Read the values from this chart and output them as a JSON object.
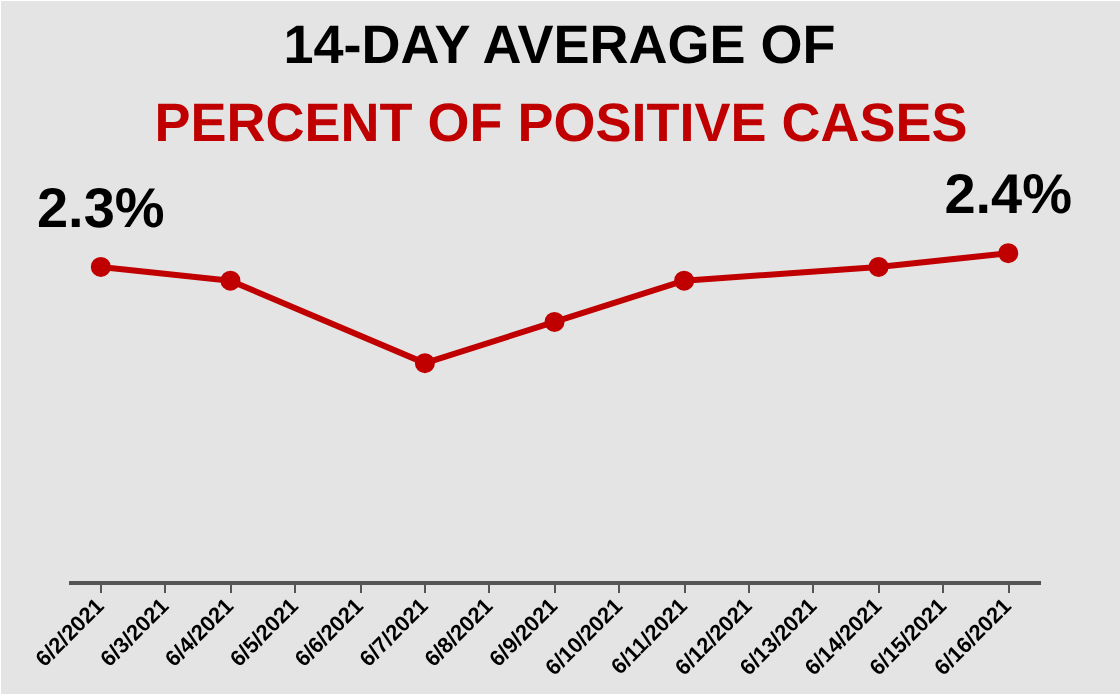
{
  "chart_data": {
    "type": "line",
    "title": "14-DAY AVERAGE OF",
    "subtitle": "PERCENT OF POSITIVE CASES",
    "categories": [
      "6/2/2021",
      "6/3/2021",
      "6/4/2021",
      "6/5/2021",
      "6/6/2021",
      "6/7/2021",
      "6/8/2021",
      "6/9/2021",
      "6/10/2021",
      "6/11/2021",
      "6/12/2021",
      "6/13/2021",
      "6/14/2021",
      "6/15/2021",
      "6/16/2021"
    ],
    "series": [
      {
        "color": "#c00000",
        "values": [
          2.3,
          null,
          2.2,
          null,
          null,
          1.6,
          null,
          1.9,
          null,
          2.2,
          null,
          null,
          2.3,
          null,
          2.4
        ],
        "value_labels": [
          "2.3%",
          null,
          null,
          null,
          null,
          null,
          null,
          null,
          null,
          null,
          null,
          null,
          null,
          null,
          "2.4%"
        ]
      }
    ],
    "ylim": [
      0,
      3.1
    ],
    "tick_labels": "x",
    "marker": "circle",
    "line_style": "solid"
  }
}
